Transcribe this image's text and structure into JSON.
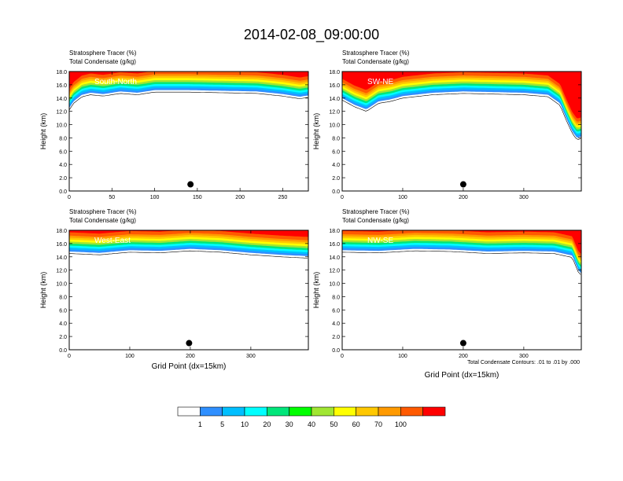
{
  "title": "2014-02-08_09:00:00",
  "header": {
    "line1": "Stratosphere Tracer   (%)",
    "line2": "Total Condensate   (g/kg)"
  },
  "footer": {
    "xlabel": "Grid Point (dx=15km)",
    "contour_note": "Total Condensate Contours: .01 to .01 by .000"
  },
  "colorbar": {
    "levels": [
      "1",
      "5",
      "10",
      "20",
      "30",
      "40",
      "50",
      "60",
      "70",
      "100"
    ],
    "colors": [
      "#ffffff",
      "#2f8fff",
      "#00bfff",
      "#00ffff",
      "#00e67a",
      "#00ff00",
      "#a0e632",
      "#ffff00",
      "#ffc800",
      "#ff9a00",
      "#ff5a00",
      "#ff0000"
    ]
  },
  "chart_data": [
    {
      "type": "heatmap",
      "panel_label": "South-North",
      "ylabel": "Height (km)",
      "xlabel": "",
      "xlim": [
        0,
        280
      ],
      "ylim": [
        0,
        18
      ],
      "xticks": [
        "0",
        "50",
        "100",
        "150",
        "200",
        "250"
      ],
      "yticks": [
        "0.0",
        "2.0",
        "4.0",
        "6.0",
        "8.0",
        "10.0",
        "12.0",
        "14.0",
        "16.0",
        "18.0"
      ],
      "tracer_base_km": [
        [
          0,
          12.5
        ],
        [
          5,
          13.5
        ],
        [
          15,
          14.5
        ],
        [
          25,
          14.8
        ],
        [
          40,
          14.6
        ],
        [
          60,
          15.0
        ],
        [
          80,
          14.8
        ],
        [
          100,
          15.2
        ],
        [
          140,
          15.2
        ],
        [
          180,
          15.1
        ],
        [
          220,
          15.0
        ],
        [
          250,
          14.6
        ],
        [
          270,
          14.2
        ],
        [
          280,
          14.4
        ]
      ],
      "location_marker": {
        "x": 142,
        "y": 1.0
      }
    },
    {
      "type": "heatmap",
      "panel_label": "SW-NE",
      "ylabel": "Height (km)",
      "xlabel": "",
      "xlim": [
        0,
        395
      ],
      "ylim": [
        0,
        18
      ],
      "xticks": [
        "0",
        "100",
        "200",
        "300"
      ],
      "yticks": [
        "0.0",
        "2.0",
        "4.0",
        "6.0",
        "8.0",
        "10.0",
        "12.0",
        "14.0",
        "16.0",
        "18.0"
      ],
      "tracer_base_km": [
        [
          0,
          14.0
        ],
        [
          20,
          13.0
        ],
        [
          40,
          12.3
        ],
        [
          60,
          13.5
        ],
        [
          80,
          13.8
        ],
        [
          100,
          14.3
        ],
        [
          150,
          14.8
        ],
        [
          200,
          15.0
        ],
        [
          250,
          14.9
        ],
        [
          300,
          14.8
        ],
        [
          340,
          14.5
        ],
        [
          360,
          13.2
        ],
        [
          370,
          11.0
        ],
        [
          380,
          9.0
        ],
        [
          388,
          8.0
        ],
        [
          395,
          8.2
        ]
      ],
      "location_marker": {
        "x": 200,
        "y": 1.0
      }
    },
    {
      "type": "heatmap",
      "panel_label": "West-East",
      "ylabel": "Height (km)",
      "xlabel": "Grid Point (dx=15km)",
      "xlim": [
        0,
        395
      ],
      "ylim": [
        0,
        18
      ],
      "xticks": [
        "0",
        "100",
        "200",
        "300"
      ],
      "yticks": [
        "0.0",
        "2.0",
        "4.0",
        "6.0",
        "8.0",
        "10.0",
        "12.0",
        "14.0",
        "16.0",
        "18.0"
      ],
      "tracer_base_km": [
        [
          0,
          14.8
        ],
        [
          50,
          14.6
        ],
        [
          100,
          15.0
        ],
        [
          150,
          14.9
        ],
        [
          200,
          15.2
        ],
        [
          250,
          15.0
        ],
        [
          300,
          14.6
        ],
        [
          350,
          14.3
        ],
        [
          395,
          14.1
        ]
      ],
      "location_marker": {
        "x": 198,
        "y": 1.0
      }
    },
    {
      "type": "heatmap",
      "panel_label": "NW-SE",
      "ylabel": "Height (km)",
      "xlabel": "Grid Point (dx=15km)",
      "xlim": [
        0,
        395
      ],
      "ylim": [
        0,
        18
      ],
      "xticks": [
        "0",
        "100",
        "200",
        "300"
      ],
      "yticks": [
        "0.0",
        "2.0",
        "4.0",
        "6.0",
        "8.0",
        "10.0",
        "12.0",
        "14.0",
        "16.0",
        "18.0"
      ],
      "tracer_base_km": [
        [
          0,
          15.0
        ],
        [
          60,
          14.9
        ],
        [
          120,
          15.2
        ],
        [
          180,
          15.1
        ],
        [
          240,
          14.8
        ],
        [
          300,
          14.9
        ],
        [
          350,
          14.8
        ],
        [
          380,
          14.2
        ],
        [
          390,
          12.0
        ],
        [
          395,
          11.5
        ]
      ],
      "location_marker": {
        "x": 200,
        "y": 1.0
      }
    }
  ]
}
